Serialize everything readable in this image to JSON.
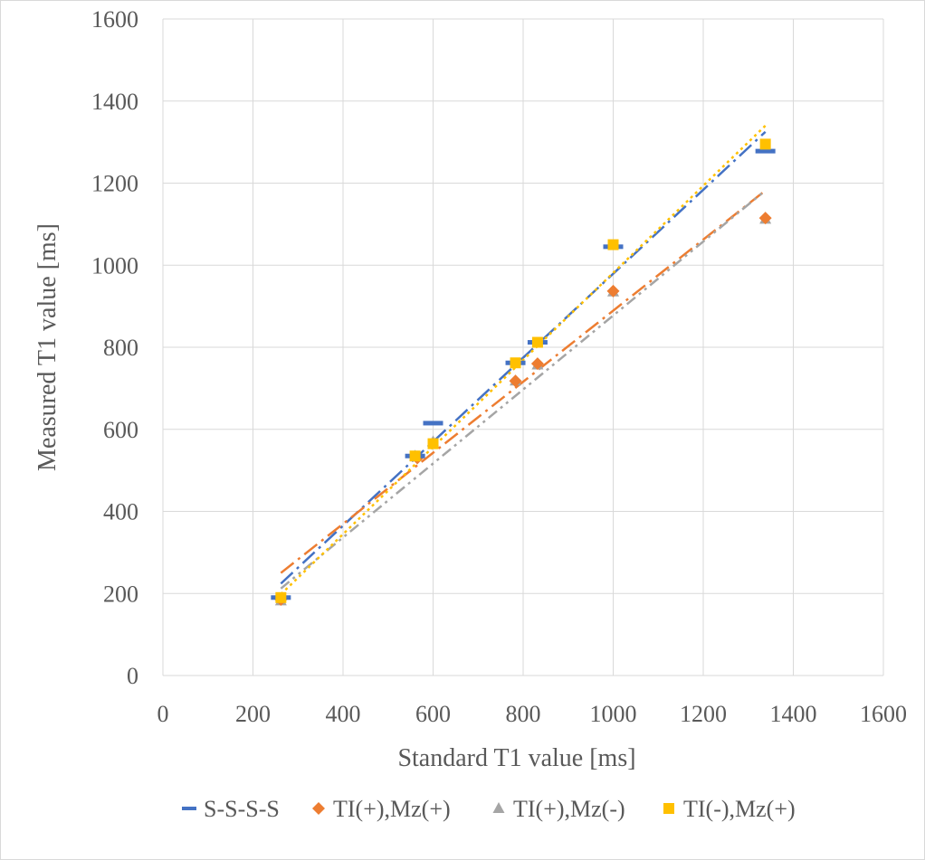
{
  "chart_data": {
    "type": "scatter",
    "xlabel": "Standard T1 value [ms]",
    "ylabel": "Measured T1 value [ms]",
    "xlim": [
      0,
      1600
    ],
    "ylim": [
      0,
      1600
    ],
    "xticks": [
      0,
      200,
      400,
      600,
      800,
      1000,
      1200,
      1400,
      1600
    ],
    "yticks": [
      0,
      200,
      400,
      600,
      800,
      1000,
      1200,
      1400,
      1600
    ],
    "grid": true,
    "legend_position": "bottom",
    "series": [
      {
        "name": "S-S-S-S",
        "marker": "dash",
        "color": "#4472C4",
        "x": [
          262,
          560,
          600,
          783,
          832,
          1000,
          1338
        ],
        "y": [
          190,
          535,
          615,
          762,
          812,
          1045,
          1278
        ],
        "trend": {
          "x": [
            262,
            1338
          ],
          "y": [
            224,
            1325
          ],
          "dash": "long-dash-dot"
        }
      },
      {
        "name": "TI(+),Mz(+)",
        "marker": "diamond",
        "color": "#ED7D31",
        "x": [
          262,
          565,
          783,
          832,
          1000,
          1338
        ],
        "y": [
          185,
          530,
          718,
          760,
          937,
          1115
        ],
        "trend": {
          "x": [
            262,
            1338
          ],
          "y": [
            250,
            1182
          ],
          "dash": "long-dash-dot"
        }
      },
      {
        "name": "TI(+),Mz(-)",
        "marker": "triangle",
        "color": "#A5A5A5",
        "x": [
          262,
          560,
          600,
          783,
          832,
          1000,
          1338
        ],
        "y": [
          182,
          535,
          570,
          718,
          757,
          935,
          1112
        ],
        "trend": {
          "x": [
            262,
            1338
          ],
          "y": [
            212,
            1182
          ],
          "dash": "dash-dot-dot"
        }
      },
      {
        "name": "TI(-),Mz(+)",
        "marker": "square",
        "color": "#FFC000",
        "x": [
          262,
          560,
          600,
          783,
          832,
          1000,
          1338
        ],
        "y": [
          190,
          535,
          565,
          762,
          812,
          1050,
          1295
        ],
        "trend": {
          "x": [
            262,
            1338
          ],
          "y": [
            198,
            1340
          ],
          "dash": "dotted"
        }
      }
    ]
  }
}
